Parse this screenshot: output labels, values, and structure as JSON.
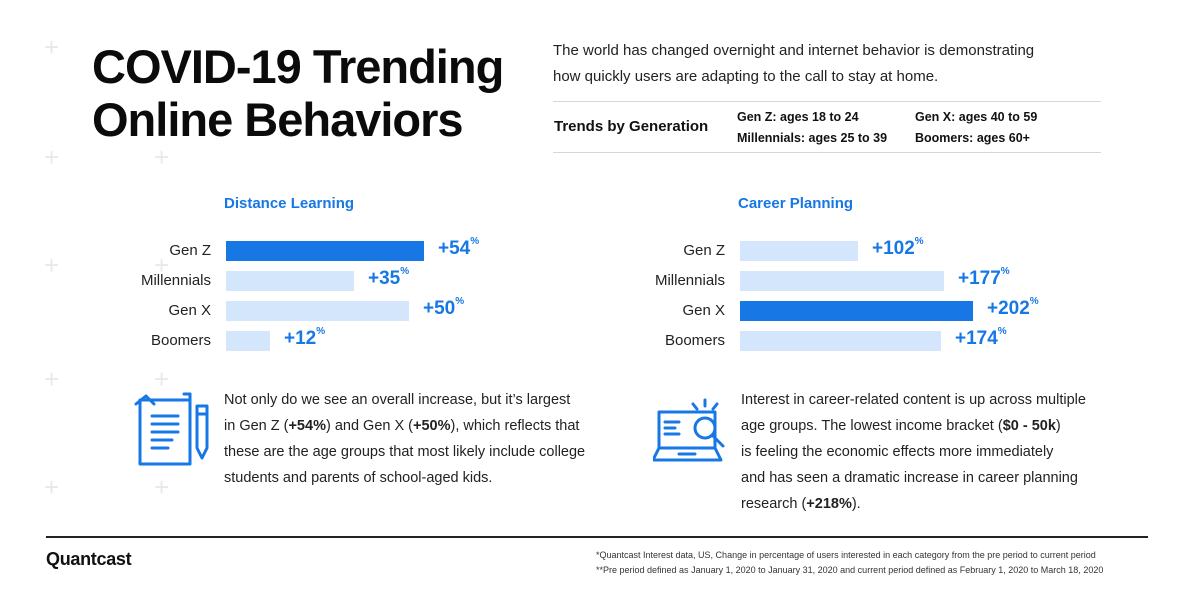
{
  "header": {
    "title_line1": "COVID-19 Trending",
    "title_line2": "Online Behaviors",
    "intro_line1": "The world has changed overnight and internet behavior is demonstrating",
    "intro_line2": "how quickly users are adapting to the call to stay at home."
  },
  "generations": {
    "label": "Trends by Generation",
    "items": [
      "Gen Z: ages 18 to 24",
      "Millennials: ages 25 to 39",
      "Gen X: ages 40 to 59",
      "Boomers: ages 60+"
    ]
  },
  "chart_data": [
    {
      "type": "bar",
      "orientation": "horizontal",
      "title": "Distance Learning",
      "categories": [
        "Gen Z",
        "Millennials",
        "Gen X",
        "Boomers"
      ],
      "values": [
        54,
        35,
        50,
        12
      ],
      "value_labels": [
        "+54",
        "+35",
        "+50",
        "+12"
      ],
      "unit": "%",
      "highlight": "Gen Z",
      "xlim": [
        0,
        54
      ]
    },
    {
      "type": "bar",
      "orientation": "horizontal",
      "title": "Career Planning",
      "categories": [
        "Gen Z",
        "Millennials",
        "Gen X",
        "Boomers"
      ],
      "values": [
        102,
        177,
        202,
        174
      ],
      "value_labels": [
        "+102",
        "+177",
        "+202",
        "+174"
      ],
      "unit": "%",
      "highlight": "Gen X",
      "xlim": [
        0,
        202
      ]
    }
  ],
  "left_text": {
    "l1": "Not only do we see an overall increase, but it’s largest",
    "l2a": "in Gen Z (",
    "l2b": "+54%",
    "l2c": ") and Gen X (",
    "l2d": "+50%",
    "l2e": "), which reflects that",
    "l3": "these are the age groups that most likely include college",
    "l4": "students and parents of school-aged kids."
  },
  "right_text": {
    "l1": "Interest in career-related content is up across multiple",
    "l2a": "age groups. The lowest income bracket (",
    "l2b": "$0 - 50k",
    "l2c": ")",
    "l3": "is feeling the economic effects more immediately",
    "l4": "and has seen a dramatic increase in career planning",
    "l5a": "research (",
    "l5b": "+218%",
    "l5c": ")."
  },
  "footer": {
    "brand": "Quantcast",
    "note1": "*Quantcast Interest data, US, Change in percentage of users interested in each category from the pre period to current period",
    "note2": "**Pre period defined as January 1, 2020   to January 31, 2020 and current period defined as February 1, 2020 to March 18, 2020"
  },
  "colors": {
    "accent": "#1677e5",
    "bar_highlight": "#1677e5",
    "bar_normal": "#d3e6fb"
  },
  "icons": {
    "left": "document-pencil-icon",
    "right": "laptop-search-icon"
  }
}
